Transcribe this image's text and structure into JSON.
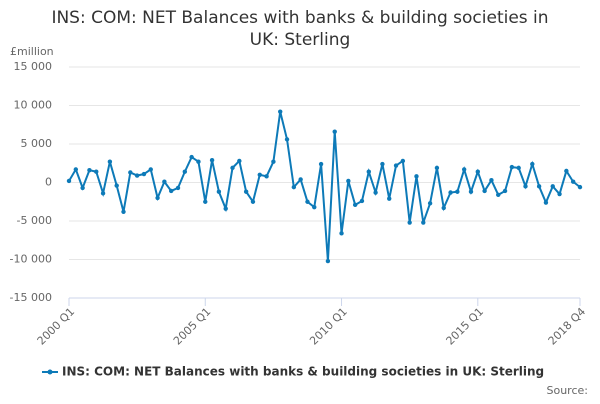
{
  "chart_data": {
    "type": "line",
    "title": "INS: COM: NET Balances with banks & building societies in UK: Sterling",
    "y_unit": "£million",
    "source": "Source:",
    "categories": [
      "2000 Q1",
      null,
      null,
      null,
      null,
      null,
      null,
      null,
      null,
      null,
      null,
      null,
      null,
      null,
      null,
      null,
      null,
      null,
      null,
      null,
      "2005 Q1",
      null,
      null,
      null,
      null,
      null,
      null,
      null,
      null,
      null,
      null,
      null,
      null,
      null,
      null,
      null,
      null,
      null,
      null,
      null,
      "2010 Q1",
      null,
      null,
      null,
      null,
      null,
      null,
      null,
      null,
      null,
      null,
      null,
      null,
      null,
      null,
      null,
      null,
      null,
      null,
      null,
      "2015 Q1",
      null,
      null,
      null,
      null,
      null,
      null,
      null,
      null,
      null,
      null,
      null,
      null,
      null,
      null,
      "2018 Q4"
    ],
    "series": [
      {
        "name": "INS: COM: NET Balances with banks & building societies in UK: Sterling",
        "color": "#0d7ab8",
        "values": [
          200,
          1700,
          -700,
          1600,
          1400,
          -1400,
          2700,
          -400,
          -3800,
          1300,
          900,
          1100,
          1700,
          -2000,
          100,
          -1100,
          -700,
          1400,
          3300,
          2700,
          -2500,
          2900,
          -1200,
          -3400,
          1900,
          2800,
          -1200,
          -2500,
          1000,
          800,
          2700,
          9200,
          5600,
          -600,
          400,
          -2500,
          -3200,
          2400,
          -10200,
          6600,
          -6600,
          200,
          -2900,
          -2400,
          1400,
          -1300,
          2400,
          -2100,
          2200,
          2800,
          -5200,
          800,
          -5200,
          -2700,
          1900,
          -3300,
          -1300,
          -1200,
          1700,
          -1200,
          1400,
          -1100,
          300,
          -1600,
          -1100,
          2000,
          1900,
          -500,
          2400,
          -500,
          -2600,
          -500,
          -1500,
          1500,
          100,
          -600
        ]
      }
    ],
    "ylim": [
      -15000,
      15000
    ],
    "yticks": [
      {
        "value": -15000,
        "label": "-15 000"
      },
      {
        "value": -10000,
        "label": "-10 000"
      },
      {
        "value": -5000,
        "label": "-5 000"
      },
      0,
      {
        "value": 5000,
        "label": "5 000"
      },
      {
        "value": 10000,
        "label": "10 000"
      },
      {
        "value": 15000,
        "label": "15 000"
      }
    ],
    "grid": true
  }
}
